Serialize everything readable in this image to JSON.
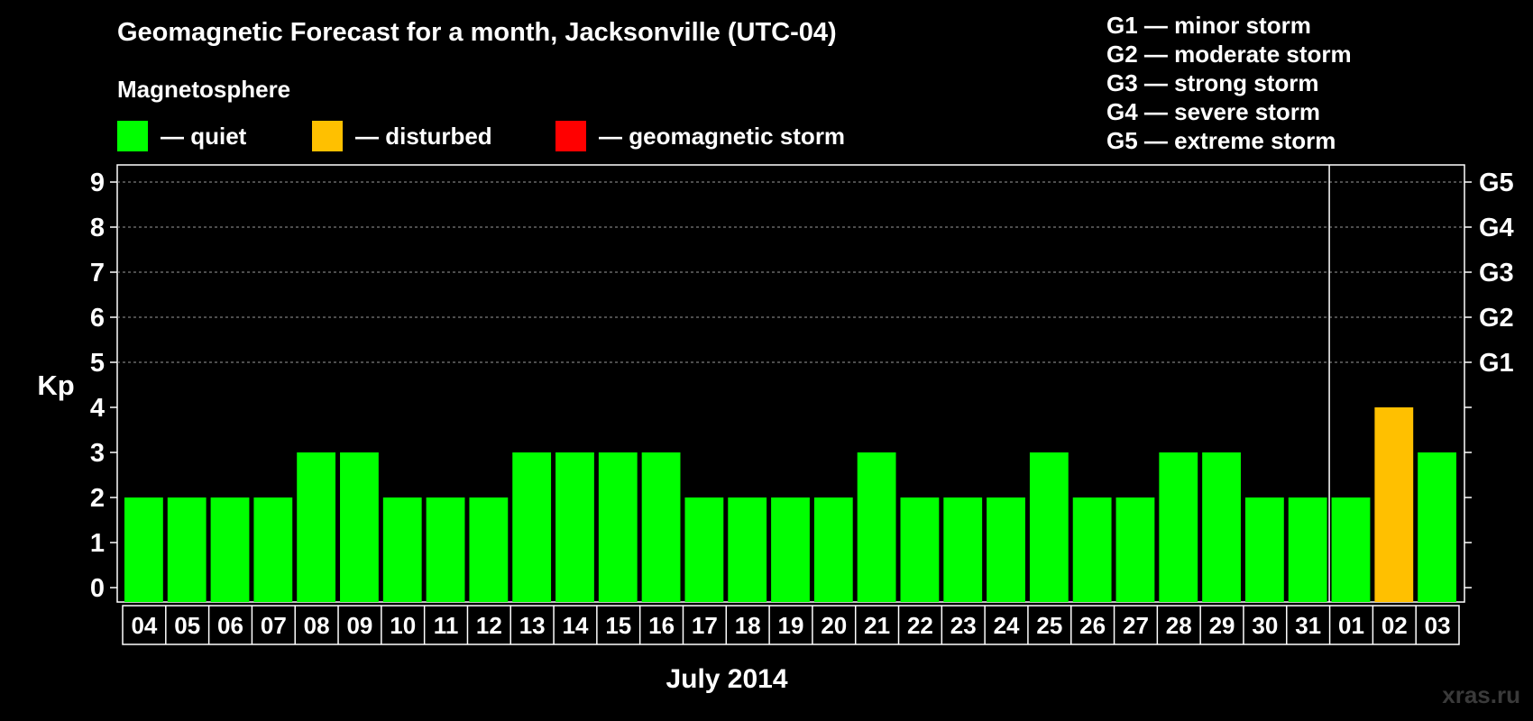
{
  "title": "Geomagnetic Forecast for a month, Jacksonville (UTC-04)",
  "magnetosphere": {
    "title": "Magnetosphere",
    "items": [
      {
        "label": "— quiet",
        "color": "#00ff00"
      },
      {
        "label": "— disturbed",
        "color": "#ffc000"
      },
      {
        "label": "— geomagnetic storm",
        "color": "#ff0000"
      }
    ]
  },
  "g_legend": [
    "G1 — minor storm",
    "G2 — moderate storm",
    "G3 — strong storm",
    "G4 — severe storm",
    "G5 — extreme storm"
  ],
  "watermark": "xras.ru",
  "colors": {
    "quiet": "#00ff00",
    "disturbed": "#ffc000",
    "storm": "#ff0000",
    "background": "#000000",
    "axis": "#ffffff"
  },
  "chart_data": {
    "type": "bar",
    "title": "Geomagnetic Forecast for a month, Jacksonville (UTC-04)",
    "xlabel": "July 2014",
    "ylabel": "Kp",
    "ylim": [
      0,
      9
    ],
    "yticks": [
      "0",
      "1",
      "2",
      "3",
      "4",
      "5",
      "6",
      "7",
      "8",
      "9"
    ],
    "right_ticks": [
      {
        "value": 5,
        "label": "G1"
      },
      {
        "value": 6,
        "label": "G2"
      },
      {
        "value": 7,
        "label": "G3"
      },
      {
        "value": 8,
        "label": "G4"
      },
      {
        "value": 9,
        "label": "G5"
      }
    ],
    "grid": "dashed horizontal at Kp 5-9",
    "month_separator_after": "31",
    "categories": [
      "04",
      "05",
      "06",
      "07",
      "08",
      "09",
      "10",
      "11",
      "12",
      "13",
      "14",
      "15",
      "16",
      "17",
      "18",
      "19",
      "20",
      "21",
      "22",
      "23",
      "24",
      "25",
      "26",
      "27",
      "28",
      "29",
      "30",
      "31",
      "01",
      "02",
      "03"
    ],
    "values": [
      2,
      2,
      2,
      2,
      3,
      3,
      2,
      2,
      2,
      3,
      3,
      3,
      3,
      2,
      2,
      2,
      2,
      3,
      2,
      2,
      2,
      3,
      2,
      2,
      3,
      3,
      2,
      2,
      2,
      4,
      3
    ],
    "status": [
      "quiet",
      "quiet",
      "quiet",
      "quiet",
      "quiet",
      "quiet",
      "quiet",
      "quiet",
      "quiet",
      "quiet",
      "quiet",
      "quiet",
      "quiet",
      "quiet",
      "quiet",
      "quiet",
      "quiet",
      "quiet",
      "quiet",
      "quiet",
      "quiet",
      "quiet",
      "quiet",
      "quiet",
      "quiet",
      "quiet",
      "quiet",
      "quiet",
      "quiet",
      "disturbed",
      "quiet"
    ]
  }
}
